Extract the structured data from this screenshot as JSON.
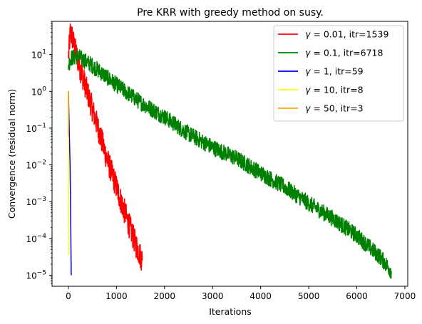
{
  "chart_data": {
    "type": "line",
    "title": "Pre KRR with greedy method on susy.",
    "xlabel": "Iterations",
    "ylabel": "Convergence (residual norm)",
    "xlim": [
      -340,
      7060
    ],
    "ylim": [
      5e-06,
      80
    ],
    "yscale": "log",
    "grid": false,
    "legend_position": "top-right",
    "x_ticks": [
      0,
      1000,
      2000,
      3000,
      4000,
      5000,
      6000,
      7000
    ],
    "x_tick_labels": [
      "0",
      "1000",
      "2000",
      "3000",
      "4000",
      "5000",
      "6000",
      "7000"
    ],
    "y_ticks": [
      1e-05,
      0.0001,
      0.001,
      0.01,
      0.1,
      1,
      10
    ],
    "y_tick_labels": [
      {
        "base": "10",
        "exp": "−5"
      },
      {
        "base": "10",
        "exp": "−4"
      },
      {
        "base": "10",
        "exp": "−3"
      },
      {
        "base": "10",
        "exp": "−2"
      },
      {
        "base": "10",
        "exp": "−1"
      },
      {
        "base": "10",
        "exp": "0"
      },
      {
        "base": "10",
        "exp": "1"
      }
    ],
    "series": [
      {
        "name": "γ = 0.01, itr=1539",
        "gamma": "0.01",
        "itr": "itr=1539",
        "color": "#ff0000",
        "x": [
          0,
          40,
          80,
          150,
          250,
          400,
          600,
          800,
          1000,
          1200,
          1400,
          1539
        ],
        "y": [
          8,
          40,
          30,
          12,
          4,
          0.9,
          0.12,
          0.015,
          0.0025,
          0.0004,
          7e-05,
          2.5e-05
        ]
      },
      {
        "name": "γ = 0.1, itr=6718",
        "gamma": "0.1",
        "itr": "itr=6718",
        "color": "#008000",
        "x": [
          0,
          50,
          200,
          500,
          1000,
          1500,
          2000,
          2500,
          3000,
          3500,
          4000,
          4500,
          5000,
          5500,
          6000,
          6500,
          6718
        ],
        "y": [
          5,
          8,
          9,
          5,
          1.5,
          0.5,
          0.2,
          0.07,
          0.03,
          0.015,
          0.006,
          0.0025,
          0.0009,
          0.00035,
          0.00012,
          3e-05,
          1.3e-05
        ]
      },
      {
        "name": "γ = 1, itr=59",
        "gamma": "1",
        "itr": "itr=59",
        "color": "#0000ff",
        "x": [
          0,
          20,
          35,
          45,
          52,
          59
        ],
        "y": [
          1,
          0.07,
          0.01,
          0.001,
          0.0001,
          1e-05
        ]
      },
      {
        "name": "γ = 10, itr=8",
        "gamma": "10",
        "itr": "itr=8",
        "color": "#ffff00",
        "x": [
          0,
          2,
          4,
          6,
          8
        ],
        "y": [
          1,
          0.1,
          0.005,
          0.0003,
          3.5e-05
        ]
      },
      {
        "name": "γ = 50, itr=3",
        "gamma": "50",
        "itr": "itr=3",
        "color": "#ffa500",
        "x": [
          0,
          1,
          2,
          3
        ],
        "y": [
          1,
          0.3,
          0.1,
          0.06
        ]
      }
    ]
  }
}
